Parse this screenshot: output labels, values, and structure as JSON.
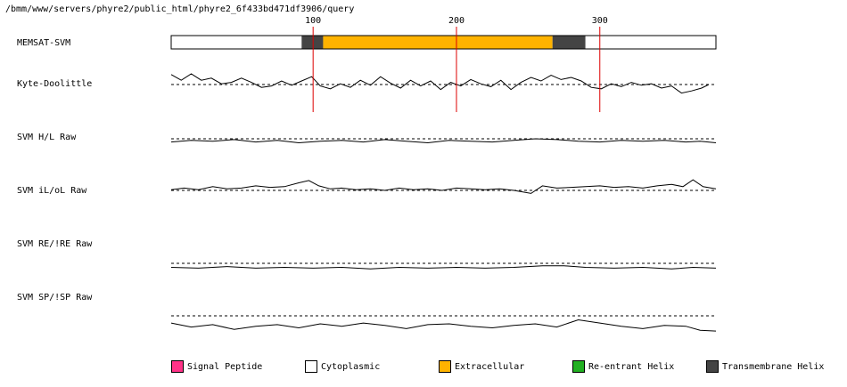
{
  "path_title": "/bmm/www/servers/phyre2/public_html/phyre2_6f433bd471df3906/query",
  "colors": {
    "signal_peptide": "#ff3388",
    "cytoplasmic": "#ffffff",
    "extracellular": "#ffb300",
    "reentrant_helix": "#22b022",
    "transmembrane_helix": "#444444",
    "marker_line": "#dd0000"
  },
  "legend": [
    {
      "label": "Signal Peptide",
      "color": "#ff3388"
    },
    {
      "label": "Cytoplasmic",
      "color": "#ffffff"
    },
    {
      "label": "Extracellular",
      "color": "#ffb300"
    },
    {
      "label": "Re-entrant Helix",
      "color": "#22b022"
    },
    {
      "label": "Transmembrane Helix",
      "color": "#444444"
    }
  ],
  "chart_data": {
    "type": "line",
    "x_range": [
      1,
      381
    ],
    "position_ticks": [
      100,
      200,
      300
    ],
    "memsat_topology": {
      "name": "MEMSAT-SVM",
      "segments": [
        {
          "start": 1,
          "end": 92,
          "region": "Cytoplasmic"
        },
        {
          "start": 92,
          "end": 107,
          "region": "Transmembrane Helix"
        },
        {
          "start": 107,
          "end": 267,
          "region": "Extracellular"
        },
        {
          "start": 267,
          "end": 290,
          "region": "Transmembrane Helix"
        },
        {
          "start": 290,
          "end": 381,
          "region": "Cytoplasmic"
        }
      ]
    },
    "tracks": [
      {
        "name": "Kyte-Doolittle",
        "threshold": 0,
        "points": [
          [
            1,
            1.4
          ],
          [
            8,
            0.6
          ],
          [
            15,
            1.5
          ],
          [
            22,
            0.6
          ],
          [
            29,
            0.9
          ],
          [
            36,
            0.1
          ],
          [
            43,
            0.3
          ],
          [
            50,
            0.9
          ],
          [
            57,
            0.3
          ],
          [
            64,
            -0.4
          ],
          [
            71,
            -0.2
          ],
          [
            78,
            0.5
          ],
          [
            85,
            -0.1
          ],
          [
            92,
            0.5
          ],
          [
            99,
            1.1
          ],
          [
            105,
            -0.2
          ],
          [
            112,
            -0.6
          ],
          [
            119,
            0.1
          ],
          [
            126,
            -0.4
          ],
          [
            133,
            0.6
          ],
          [
            140,
            -0.1
          ],
          [
            147,
            1.1
          ],
          [
            154,
            0.2
          ],
          [
            161,
            -0.5
          ],
          [
            168,
            0.6
          ],
          [
            175,
            -0.2
          ],
          [
            182,
            0.5
          ],
          [
            189,
            -0.7
          ],
          [
            196,
            0.3
          ],
          [
            203,
            -0.2
          ],
          [
            210,
            0.7
          ],
          [
            217,
            0.1
          ],
          [
            224,
            -0.3
          ],
          [
            231,
            0.6
          ],
          [
            238,
            -0.7
          ],
          [
            245,
            0.3
          ],
          [
            252,
            1.0
          ],
          [
            259,
            0.5
          ],
          [
            266,
            1.3
          ],
          [
            273,
            0.7
          ],
          [
            280,
            1.0
          ],
          [
            287,
            0.5
          ],
          [
            294,
            -0.4
          ],
          [
            301,
            -0.6
          ],
          [
            308,
            0.1
          ],
          [
            315,
            -0.3
          ],
          [
            322,
            0.3
          ],
          [
            329,
            -0.1
          ],
          [
            336,
            0.1
          ],
          [
            343,
            -0.5
          ],
          [
            350,
            -0.2
          ],
          [
            357,
            -1.2
          ],
          [
            364,
            -0.9
          ],
          [
            371,
            -0.5
          ],
          [
            376,
            0.0
          ]
        ]
      },
      {
        "name": "SVM H/L Raw",
        "threshold": 0,
        "points": [
          [
            1,
            -0.4
          ],
          [
            15,
            -0.2
          ],
          [
            30,
            -0.3
          ],
          [
            45,
            -0.1
          ],
          [
            60,
            -0.4
          ],
          [
            75,
            -0.2
          ],
          [
            90,
            -0.5
          ],
          [
            105,
            -0.3
          ],
          [
            120,
            -0.2
          ],
          [
            135,
            -0.4
          ],
          [
            150,
            -0.1
          ],
          [
            165,
            -0.3
          ],
          [
            180,
            -0.5
          ],
          [
            195,
            -0.2
          ],
          [
            210,
            -0.3
          ],
          [
            225,
            -0.4
          ],
          [
            240,
            -0.2
          ],
          [
            255,
            0.0
          ],
          [
            270,
            -0.1
          ],
          [
            285,
            -0.3
          ],
          [
            300,
            -0.4
          ],
          [
            315,
            -0.2
          ],
          [
            330,
            -0.3
          ],
          [
            345,
            -0.2
          ],
          [
            360,
            -0.4
          ],
          [
            370,
            -0.3
          ],
          [
            381,
            -0.5
          ]
        ]
      },
      {
        "name": "SVM iL/oL Raw",
        "threshold": 0,
        "points": [
          [
            1,
            0.1
          ],
          [
            10,
            0.3
          ],
          [
            20,
            0.1
          ],
          [
            30,
            0.5
          ],
          [
            40,
            0.2
          ],
          [
            50,
            0.3
          ],
          [
            60,
            0.6
          ],
          [
            70,
            0.4
          ],
          [
            80,
            0.5
          ],
          [
            90,
            1.0
          ],
          [
            97,
            1.3
          ],
          [
            104,
            0.6
          ],
          [
            112,
            0.2
          ],
          [
            120,
            0.3
          ],
          [
            130,
            0.1
          ],
          [
            140,
            0.2
          ],
          [
            150,
            0.0
          ],
          [
            160,
            0.3
          ],
          [
            170,
            0.1
          ],
          [
            180,
            0.2
          ],
          [
            190,
            0.0
          ],
          [
            200,
            0.3
          ],
          [
            210,
            0.2
          ],
          [
            220,
            0.1
          ],
          [
            230,
            0.2
          ],
          [
            240,
            0.0
          ],
          [
            252,
            -0.4
          ],
          [
            260,
            0.6
          ],
          [
            270,
            0.3
          ],
          [
            280,
            0.4
          ],
          [
            290,
            0.5
          ],
          [
            300,
            0.6
          ],
          [
            310,
            0.4
          ],
          [
            320,
            0.5
          ],
          [
            330,
            0.3
          ],
          [
            340,
            0.6
          ],
          [
            350,
            0.8
          ],
          [
            358,
            0.5
          ],
          [
            365,
            1.4
          ],
          [
            372,
            0.5
          ],
          [
            381,
            0.2
          ]
        ]
      },
      {
        "name": "SVM RE/!RE Raw",
        "threshold": 0,
        "points": [
          [
            1,
            -0.5
          ],
          [
            20,
            -0.6
          ],
          [
            40,
            -0.4
          ],
          [
            60,
            -0.6
          ],
          [
            80,
            -0.5
          ],
          [
            100,
            -0.6
          ],
          [
            120,
            -0.5
          ],
          [
            140,
            -0.7
          ],
          [
            160,
            -0.5
          ],
          [
            180,
            -0.6
          ],
          [
            200,
            -0.5
          ],
          [
            220,
            -0.6
          ],
          [
            240,
            -0.5
          ],
          [
            260,
            -0.3
          ],
          [
            275,
            -0.3
          ],
          [
            290,
            -0.5
          ],
          [
            310,
            -0.6
          ],
          [
            330,
            -0.5
          ],
          [
            350,
            -0.7
          ],
          [
            365,
            -0.5
          ],
          [
            381,
            -0.6
          ]
        ]
      },
      {
        "name": "SVM SP/!SP Raw",
        "threshold": 0,
        "points": [
          [
            1,
            -0.9
          ],
          [
            15,
            -1.4
          ],
          [
            30,
            -1.1
          ],
          [
            45,
            -1.7
          ],
          [
            60,
            -1.3
          ],
          [
            75,
            -1.1
          ],
          [
            90,
            -1.5
          ],
          [
            105,
            -1.0
          ],
          [
            120,
            -1.3
          ],
          [
            135,
            -0.9
          ],
          [
            150,
            -1.2
          ],
          [
            165,
            -1.6
          ],
          [
            180,
            -1.1
          ],
          [
            195,
            -1.0
          ],
          [
            210,
            -1.3
          ],
          [
            225,
            -1.5
          ],
          [
            240,
            -1.2
          ],
          [
            255,
            -1.0
          ],
          [
            270,
            -1.4
          ],
          [
            285,
            -0.5
          ],
          [
            300,
            -0.9
          ],
          [
            315,
            -1.3
          ],
          [
            330,
            -1.6
          ],
          [
            345,
            -1.2
          ],
          [
            360,
            -1.3
          ],
          [
            370,
            -1.8
          ],
          [
            381,
            -1.9
          ]
        ]
      }
    ]
  }
}
